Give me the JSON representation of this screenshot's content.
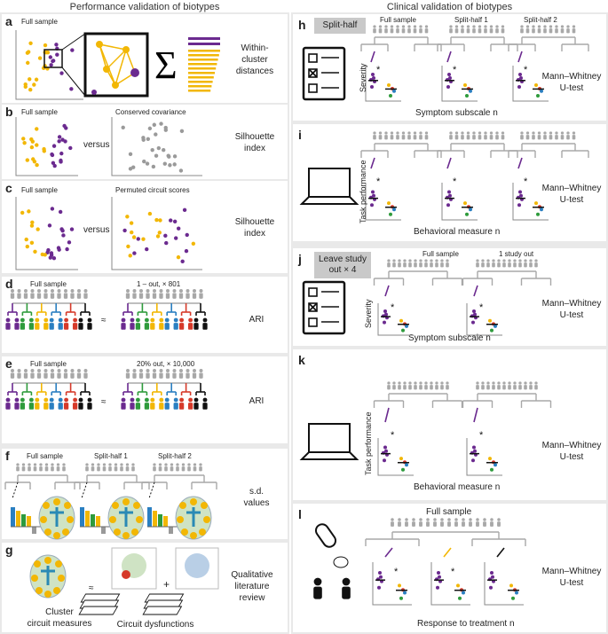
{
  "headers": {
    "left": "Performance validation of biotypes",
    "right": "Clinical validation of biotypes"
  },
  "a": {
    "label": "a",
    "full": "Full sample",
    "metric": "Within-\ncluster\ndistances"
  },
  "b": {
    "label": "b",
    "full": "Full sample",
    "alt": "Conserved covariance",
    "versus": "versus",
    "metric": "Silhouette\nindex"
  },
  "c": {
    "label": "c",
    "full": "Full sample",
    "alt": "Permuted circuit scores",
    "versus": "versus",
    "metric": "Silhouette\nindex"
  },
  "d": {
    "label": "d",
    "full": "Full sample",
    "alt": "1 – out, × 801",
    "approx": "≈",
    "metric": "ARI"
  },
  "e": {
    "label": "e",
    "full": "Full sample",
    "alt": "20% out, × 10,000",
    "approx": "≈",
    "metric": "ARI"
  },
  "f": {
    "label": "f",
    "full": "Full sample",
    "s1": "Split-half 1",
    "s2": "Split-half 2",
    "metric": "s.d.\nvalues"
  },
  "g": {
    "label": "g",
    "approx": "≈",
    "plus": "+",
    "left": "Cluster\ncircuit measures",
    "right": "Circuit dysfunctions",
    "metric": "Qualitative\nliterature\nreview"
  },
  "h": {
    "label": "h",
    "tag": "Split-half",
    "full": "Full sample",
    "s1": "Split-half 1",
    "s2": "Split-half 2",
    "ylabel": "Severity",
    "star": "*",
    "xlabel": "Symptom subscale n",
    "test": "Mann–Whitney\nU-test"
  },
  "i": {
    "label": "i",
    "ylabel": "Task performance",
    "star": "*",
    "xlabel": "Behavioral measure n",
    "test": "Mann–Whitney\nU-test"
  },
  "j": {
    "label": "j",
    "tag": "Leave study\nout × 4",
    "full": "Full sample",
    "s1": "1 study out",
    "ylabel": "Severity",
    "star": "*",
    "xlabel": "Symptom subscale n",
    "test": "Mann–Whitney\nU-test"
  },
  "k": {
    "label": "k",
    "ylabel": "Task performance",
    "star": "*",
    "xlabel": "Behavioral measure n",
    "test": "Mann–Whitney\nU-test"
  },
  "l": {
    "label": "l",
    "full": "Full sample",
    "star": "*",
    "xlabel": "Response to treatment n",
    "test": "Mann–Whitney\nU-test"
  },
  "colors": {
    "purple": "#6b2a8f",
    "gold": "#f2b705",
    "green": "#2e9b3c",
    "blue": "#2a7fc1",
    "red": "#d63a2a",
    "black": "#111111",
    "grey": "#9a9a9a",
    "bg": "#e9e9e9"
  }
}
